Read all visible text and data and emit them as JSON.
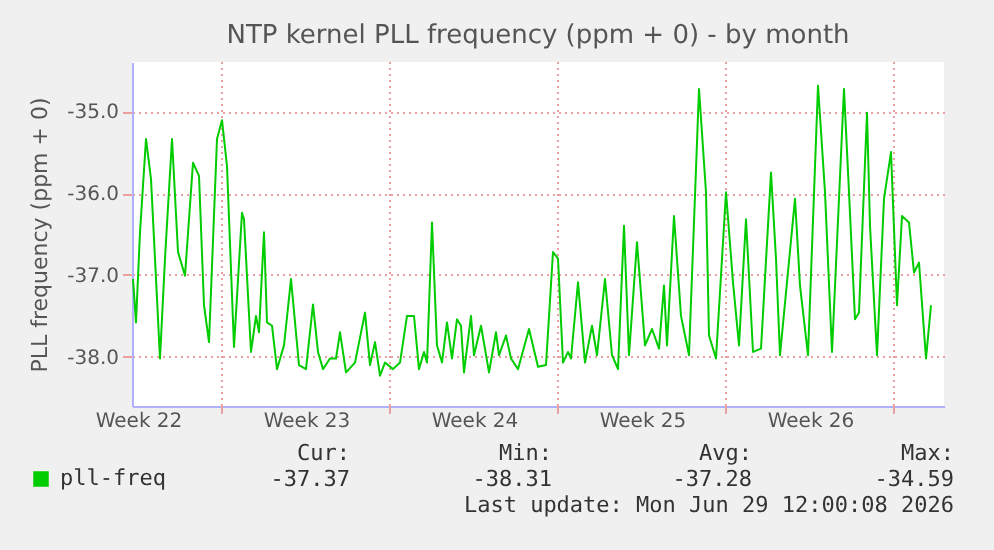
{
  "chart_data": {
    "type": "line",
    "title": "NTP kernel PLL frequency (ppm + 0) - by month",
    "ylabel": "PLL frequency (ppm + 0)",
    "xlim": [
      "2026-05-28T06:00",
      "2026-07-01T02:00"
    ],
    "xticks": [
      {
        "value": "2026-05-28T12:00",
        "label": "Week 22"
      },
      {
        "value": "2026-06-04T12:00",
        "label": "Week 23"
      },
      {
        "value": "2026-06-11T12:00",
        "label": "Week 24"
      },
      {
        "value": "2026-06-18T12:00",
        "label": "Week 25"
      },
      {
        "value": "2026-06-25T12:00",
        "label": "Week 26"
      },
      {
        "value": "2026-06-01",
        "label": null
      },
      {
        "value": "2026-06-08",
        "label": null
      },
      {
        "value": "2026-06-15",
        "label": null
      },
      {
        "value": "2026-06-22",
        "label": null
      },
      {
        "value": "2026-06-29",
        "label": null
      }
    ],
    "ylim": [
      -38.6,
      -34.4
    ],
    "yticks": [
      {
        "value": -38,
        "label": "-38.0"
      },
      {
        "value": -37,
        "label": "-37.0"
      },
      {
        "value": -36,
        "label": "-36.0"
      },
      {
        "value": -35,
        "label": "-35.0"
      }
    ],
    "grid": true,
    "legend": "bottom left",
    "marker": "none",
    "line_style": "solid",
    "annotations": [
      "Cur:",
      "-37.37",
      "Min:",
      "-38.31",
      "Avg:",
      "-37.28",
      "Max:",
      "-34.59",
      "Last update: Mon Jun 29 12:00:08 2026"
    ],
    "series": [
      {
        "name": "pll-freq",
        "color": "#00cc00",
        "x": [
          "2026-05-28T07:00",
          "2026-05-28T10:00",
          "2026-05-28T14:00",
          "2026-05-28T20:00",
          "2026-05-29T01:00",
          "2026-05-29T10:00",
          "2026-05-29T15:00",
          "2026-05-29T22:00",
          "2026-05-30T04:00",
          "2026-05-30T11:00",
          "2026-05-30T19:00",
          "2026-05-31T01:00",
          "2026-05-31T06:00",
          "2026-05-31T11:00",
          "2026-05-31T19:00",
          "2026-06-01T00:00",
          "2026-06-01T05:00",
          "2026-06-01T12:00",
          "2026-06-01T20:00",
          "2026-06-01T22:00",
          "2026-06-02T05:00",
          "2026-06-02T10:00",
          "2026-06-02T13:00",
          "2026-06-02T18:00",
          "2026-06-02T21:00",
          "2026-06-03T02:00",
          "2026-06-03T07:00",
          "2026-06-03T14:00",
          "2026-06-03T21:00",
          "2026-06-04T05:00",
          "2026-06-04T12:00",
          "2026-06-04T19:00",
          "2026-06-05T00:00",
          "2026-06-05T05:00",
          "2026-06-05T12:00",
          "2026-06-05T18:00",
          "2026-06-05T22:00",
          "2026-06-06T04:00",
          "2026-06-06T13:00",
          "2026-06-06T23:00",
          "2026-06-07T04:00",
          "2026-06-07T09:00",
          "2026-06-07T14:00",
          "2026-06-07T19:00",
          "2026-06-08T03:00",
          "2026-06-08T10:00",
          "2026-06-08T17:00",
          "2026-06-09T00:00",
          "2026-06-09T05:00",
          "2026-06-09T10:00",
          "2026-06-09T13:00",
          "2026-06-09T18:00",
          "2026-06-09T23:00",
          "2026-06-10T04:00",
          "2026-06-10T09:00",
          "2026-06-10T14:00",
          "2026-06-10T19:00",
          "2026-06-10T23:00",
          "2026-06-11T02:00",
          "2026-06-11T09:00",
          "2026-06-11T12:00",
          "2026-06-11T19:00",
          "2026-06-12T03:00",
          "2026-06-12T10:00",
          "2026-06-12T13:00",
          "2026-06-12T20:00",
          "2026-06-13T01:00",
          "2026-06-13T08:00",
          "2026-06-13T19:00",
          "2026-06-14T04:00",
          "2026-06-14T12:00",
          "2026-06-14T19:00",
          "2026-06-15T00:00",
          "2026-06-15T05:00",
          "2026-06-15T10:00",
          "2026-06-15T13:00",
          "2026-06-15T20:00",
          "2026-06-16T03:00",
          "2026-06-16T10:00",
          "2026-06-16T15:00",
          "2026-06-16T23:00",
          "2026-06-17T06:00",
          "2026-06-17T12:00",
          "2026-06-17T18:00",
          "2026-06-17T23:00",
          "2026-06-18T07:00",
          "2026-06-18T15:00",
          "2026-06-18T22:00",
          "2026-06-19T05:00",
          "2026-06-19T10:00",
          "2026-06-19T13:00",
          "2026-06-19T20:00",
          "2026-06-20T03:00",
          "2026-06-20T11:00",
          "2026-06-20T21:00",
          "2026-06-21T04:00",
          "2026-06-21T07:00",
          "2026-06-21T14:00",
          "2026-06-22T00:00",
          "2026-06-22T07:00",
          "2026-06-22T13:00",
          "2026-06-22T20:00",
          "2026-06-23T03:00",
          "2026-06-23T11:00",
          "2026-06-23T21:00",
          "2026-06-24T02:00",
          "2026-06-24T06:00",
          "2026-06-24T21:00",
          "2026-06-25T02:00",
          "2026-06-25T10:00",
          "2026-06-25T20:00",
          "2026-06-26T03:00",
          "2026-06-26T10:00",
          "2026-06-26T22:00",
          "2026-06-27T03:00",
          "2026-06-27T09:00",
          "2026-06-27T13:00",
          "2026-06-27T21:00",
          "2026-06-28T00:00",
          "2026-06-28T07:00",
          "2026-06-28T14:00",
          "2026-06-28T21:00",
          "2026-06-29T03:00",
          "2026-06-29T08:00",
          "2026-06-29T15:00",
          "2026-06-29T20:00",
          "2026-06-30T01:00",
          "2026-06-30T08:00",
          "2026-06-30T13:00"
        ],
        "values": [
          -37.05,
          -37.58,
          -36.48,
          -35.34,
          -35.83,
          -38.02,
          -36.8,
          -35.34,
          -36.72,
          -37.01,
          -35.63,
          -35.79,
          -37.37,
          -37.82,
          -35.34,
          -35.11,
          -35.67,
          -37.88,
          -36.24,
          -36.32,
          -37.94,
          -37.5,
          -37.7,
          -36.48,
          -37.58,
          -37.62,
          -38.15,
          -37.86,
          -37.05,
          -38.1,
          -38.15,
          -37.36,
          -37.94,
          -38.15,
          -38.02,
          -38.02,
          -37.7,
          -38.19,
          -38.07,
          -37.46,
          -38.1,
          -37.82,
          -38.23,
          -38.07,
          -38.15,
          -38.07,
          -37.5,
          -37.5,
          -38.15,
          -37.94,
          -38.07,
          -36.36,
          -37.86,
          -38.07,
          -37.58,
          -38.02,
          -37.54,
          -37.62,
          -38.19,
          -37.5,
          -37.98,
          -37.62,
          -38.19,
          -37.7,
          -37.98,
          -37.74,
          -38.02,
          -38.15,
          -37.66,
          -38.12,
          -38.1,
          -36.72,
          -36.8,
          -38.07,
          -37.94,
          -38.02,
          -37.09,
          -38.07,
          -37.62,
          -37.98,
          -37.05,
          -37.98,
          -38.15,
          -36.4,
          -37.98,
          -36.6,
          -37.86,
          -37.66,
          -37.9,
          -37.13,
          -37.86,
          -36.28,
          -37.5,
          -37.98,
          -34.73,
          -35.99,
          -37.74,
          -38.02,
          -35.99,
          -37.09,
          -37.86,
          -36.32,
          -37.94,
          -37.9,
          -35.75,
          -36.8,
          -37.98,
          -36.07,
          -37.13,
          -37.98,
          -34.69,
          -35.99,
          -37.94,
          -34.73,
          -35.99,
          -37.54,
          -37.46,
          -35.02,
          -36.4,
          -37.98,
          -36.07,
          -35.5,
          -37.37,
          -36.28,
          -36.36,
          -36.97,
          -36.85,
          -38.02,
          -37.37
        ]
      }
    ]
  }
}
